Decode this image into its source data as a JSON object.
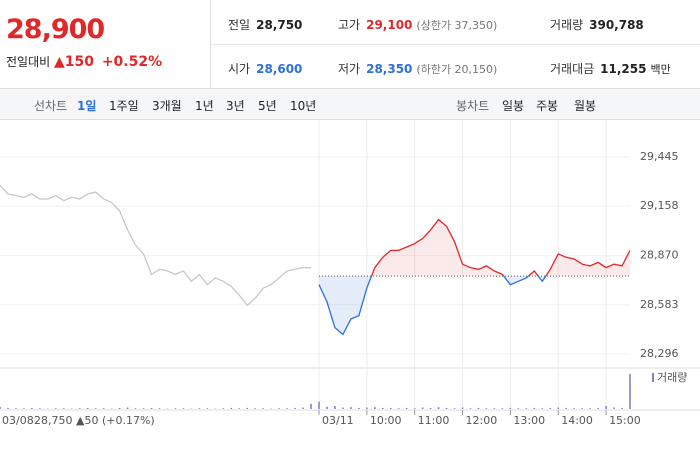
{
  "header": {
    "price": "28,900",
    "change_label": "전일대비",
    "change": "▲150",
    "change_pct": "+0.52%"
  },
  "info": [
    {
      "label": "전일",
      "value": "28,750"
    },
    {
      "label": "고가",
      "value": "29,100",
      "note": "(상한가 37,350)"
    },
    {
      "label": "거래량",
      "value": "390,788"
    },
    {
      "label": "시가",
      "value": "28,600"
    },
    {
      "label": "저가",
      "value": "28,350",
      "note": "(하한가 20,150)"
    },
    {
      "label": "거래대금",
      "value": "11,255",
      "note": "백만"
    }
  ],
  "tabs": {
    "line_label": "선차트",
    "line_items": [
      "1일",
      "1주일",
      "3개월",
      "1년",
      "3년",
      "5년",
      "10년"
    ],
    "candle_label": "봉차트",
    "candle_items": [
      "일봉",
      "주봉",
      "월봉"
    ]
  },
  "chart_data": {
    "type": "line",
    "categories": [
      "03/08",
      null,
      null,
      null,
      null,
      null,
      null,
      null,
      null,
      null,
      null,
      null,
      null,
      null,
      null,
      null,
      null,
      null,
      null,
      null,
      null,
      null,
      null,
      null,
      null,
      null,
      null,
      null,
      null,
      null,
      null,
      null,
      null,
      null,
      null,
      null,
      null,
      null,
      null,
      null,
      "03/11",
      null,
      null,
      null,
      null,
      null,
      "10:00",
      null,
      null,
      null,
      null,
      null,
      "11:00",
      null,
      null,
      null,
      null,
      null,
      "12:00",
      null,
      null,
      null,
      null,
      null,
      "13:00",
      null,
      null,
      null,
      null,
      null,
      "14:00",
      null,
      null,
      null,
      null,
      null,
      "15:00",
      null,
      null,
      null
    ],
    "prev_note": "28,750 ▲50 (+0.17%)",
    "baseline": 28750,
    "ylim": [
      28296,
      29445
    ],
    "yticks": [
      {
        "value": 29445,
        "label": "29,445"
      },
      {
        "value": 29158,
        "label": "29,158"
      },
      {
        "value": 28870,
        "label": "28,870"
      },
      {
        "value": 28583,
        "label": "28,583"
      },
      {
        "value": 28296,
        "label": "28,296"
      }
    ],
    "series": [
      {
        "color": "#c8c8c8",
        "values": [
          29280,
          29230,
          29220,
          29210,
          29230,
          29200,
          29200,
          29220,
          29190,
          29210,
          29200,
          29230,
          29240,
          29200,
          29180,
          29130,
          29020,
          28930,
          28880,
          28760,
          28790,
          28780,
          28760,
          28780,
          28720,
          28760,
          28700,
          28740,
          28720,
          28690,
          28640,
          28580,
          28620,
          28680,
          28700,
          28740,
          28780,
          28790,
          28800,
          28800,
          null,
          null,
          null,
          null,
          null,
          null,
          null,
          null,
          null,
          null,
          null,
          null,
          null,
          null,
          null,
          null,
          null,
          null,
          null,
          null,
          null,
          null,
          null,
          null,
          null,
          null,
          null,
          null,
          null,
          null,
          null,
          null,
          null,
          null,
          null,
          null,
          null,
          null,
          null,
          null
        ]
      },
      {
        "color_up": "#e0282a",
        "color_down": "#2f6fd8",
        "values": [
          null,
          null,
          null,
          null,
          null,
          null,
          null,
          null,
          null,
          null,
          null,
          null,
          null,
          null,
          null,
          null,
          null,
          null,
          null,
          null,
          null,
          null,
          null,
          null,
          null,
          null,
          null,
          null,
          null,
          null,
          null,
          null,
          null,
          null,
          null,
          null,
          null,
          null,
          null,
          null,
          28700,
          28600,
          28450,
          28410,
          28500,
          28520,
          28680,
          28800,
          28860,
          28900,
          28900,
          28920,
          28940,
          28970,
          29020,
          29080,
          29040,
          28950,
          28820,
          28800,
          28790,
          28810,
          28780,
          28760,
          28700,
          28720,
          28740,
          28780,
          28720,
          28790,
          28880,
          28860,
          28850,
          28820,
          28810,
          28830,
          28800,
          28820,
          28810,
          28900
        ]
      }
    ],
    "volume": {
      "name": "거래량",
      "color": "#8e7cc3",
      "ylim": [
        0,
        100
      ],
      "values": [
        6,
        3,
        2,
        2,
        3,
        2,
        1,
        2,
        2,
        1,
        2,
        3,
        2,
        2,
        1,
        3,
        4,
        2,
        2,
        3,
        2,
        1,
        2,
        2,
        1,
        2,
        2,
        1,
        2,
        3,
        2,
        3,
        2,
        2,
        1,
        2,
        2,
        3,
        4,
        14,
        20,
        6,
        8,
        4,
        5,
        3,
        4,
        5,
        3,
        3,
        2,
        3,
        2,
        4,
        3,
        5,
        3,
        2,
        4,
        2,
        3,
        2,
        2,
        2,
        3,
        2,
        2,
        3,
        2,
        3,
        4,
        3,
        2,
        2,
        2,
        3,
        8,
        4,
        3,
        95
      ]
    }
  }
}
